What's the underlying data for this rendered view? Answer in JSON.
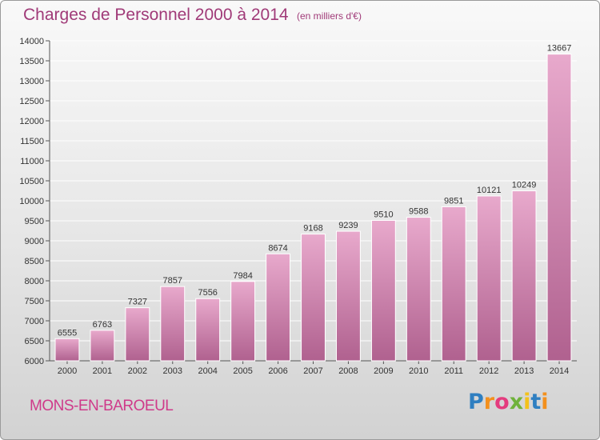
{
  "header": {
    "title": "Charges de Personnel 2000 à 2014",
    "unit": "(en milliers d'€)"
  },
  "footer": {
    "commune": "MONS-EN-BAROEUL",
    "logo_letters": [
      "P",
      "r",
      "o",
      "x",
      "i",
      "t",
      "i"
    ],
    "logo_colors": [
      "#2f7fc1",
      "#f3901d",
      "#e43c7e",
      "#6fb23b",
      "#f3c11a",
      "#2f7fc1",
      "#f3901d"
    ]
  },
  "colors": {
    "bar_top": "#e8a9cc",
    "bar_bottom": "#b0618f",
    "grid": "#ffffff",
    "title": "#a03a78",
    "commune": "#cf3a8a"
  },
  "chart_data": {
    "type": "bar",
    "title": "Charges de Personnel 2000 à 2014",
    "subtitle": "(en milliers d'€)",
    "xlabel": "",
    "ylabel": "",
    "categories": [
      "2000",
      "2001",
      "2002",
      "2003",
      "2004",
      "2005",
      "2006",
      "2007",
      "2008",
      "2009",
      "2010",
      "2011",
      "2012",
      "2013",
      "2014"
    ],
    "values": [
      6555,
      6763,
      7327,
      7857,
      7556,
      7984,
      8674,
      9168,
      9239,
      9510,
      9588,
      9851,
      10121,
      10249,
      13667
    ],
    "ylim": [
      6000,
      14000
    ],
    "yticks": [
      6000,
      6500,
      7000,
      7500,
      8000,
      8500,
      9000,
      9500,
      10000,
      10500,
      11000,
      11500,
      12000,
      12500,
      13000,
      13500,
      14000
    ],
    "grid": true,
    "legend": "none"
  }
}
